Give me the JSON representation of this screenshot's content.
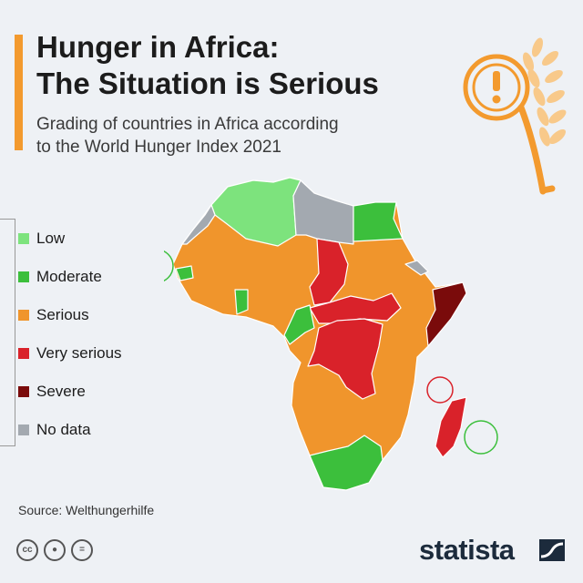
{
  "header": {
    "title_line1": "Hunger in Africa:",
    "title_line2": "The Situation is Serious",
    "subtitle_line1": "Grading of countries in Africa according",
    "subtitle_line2": "to the World Hunger Index 2021",
    "accent_color": "#f39a2e"
  },
  "legend": {
    "items": [
      {
        "label": "Low",
        "color": "#7de37d"
      },
      {
        "label": "Moderate",
        "color": "#3cbf3c"
      },
      {
        "label": "Serious",
        "color": "#f0952c"
      },
      {
        "label": "Very serious",
        "color": "#d9222a"
      },
      {
        "label": "Severe",
        "color": "#7a0b0b"
      },
      {
        "label": "No data",
        "color": "#a3a9b0"
      }
    ]
  },
  "map": {
    "regions": [
      {
        "name": "north-africa",
        "category": "Low"
      },
      {
        "name": "libya",
        "category": "No data"
      },
      {
        "name": "egypt",
        "category": "Moderate"
      },
      {
        "name": "western-sahara",
        "category": "No data"
      },
      {
        "name": "sahel",
        "category": "Serious"
      },
      {
        "name": "chad",
        "category": "Very serious"
      },
      {
        "name": "sudan",
        "category": "Serious"
      },
      {
        "name": "central-african-republic",
        "category": "Very serious"
      },
      {
        "name": "dr-congo",
        "category": "Very serious"
      },
      {
        "name": "somalia",
        "category": "Severe"
      },
      {
        "name": "madagascar",
        "category": "Very serious"
      },
      {
        "name": "southern-africa",
        "category": "Moderate"
      },
      {
        "name": "ghana",
        "category": "Moderate"
      },
      {
        "name": "cameroon",
        "category": "Moderate"
      }
    ]
  },
  "footer": {
    "source": "Source: Welthungerhilfe",
    "license_icons": [
      "cc-icon",
      "attribution-icon",
      "no-derivatives-icon"
    ],
    "brand": "statista"
  }
}
